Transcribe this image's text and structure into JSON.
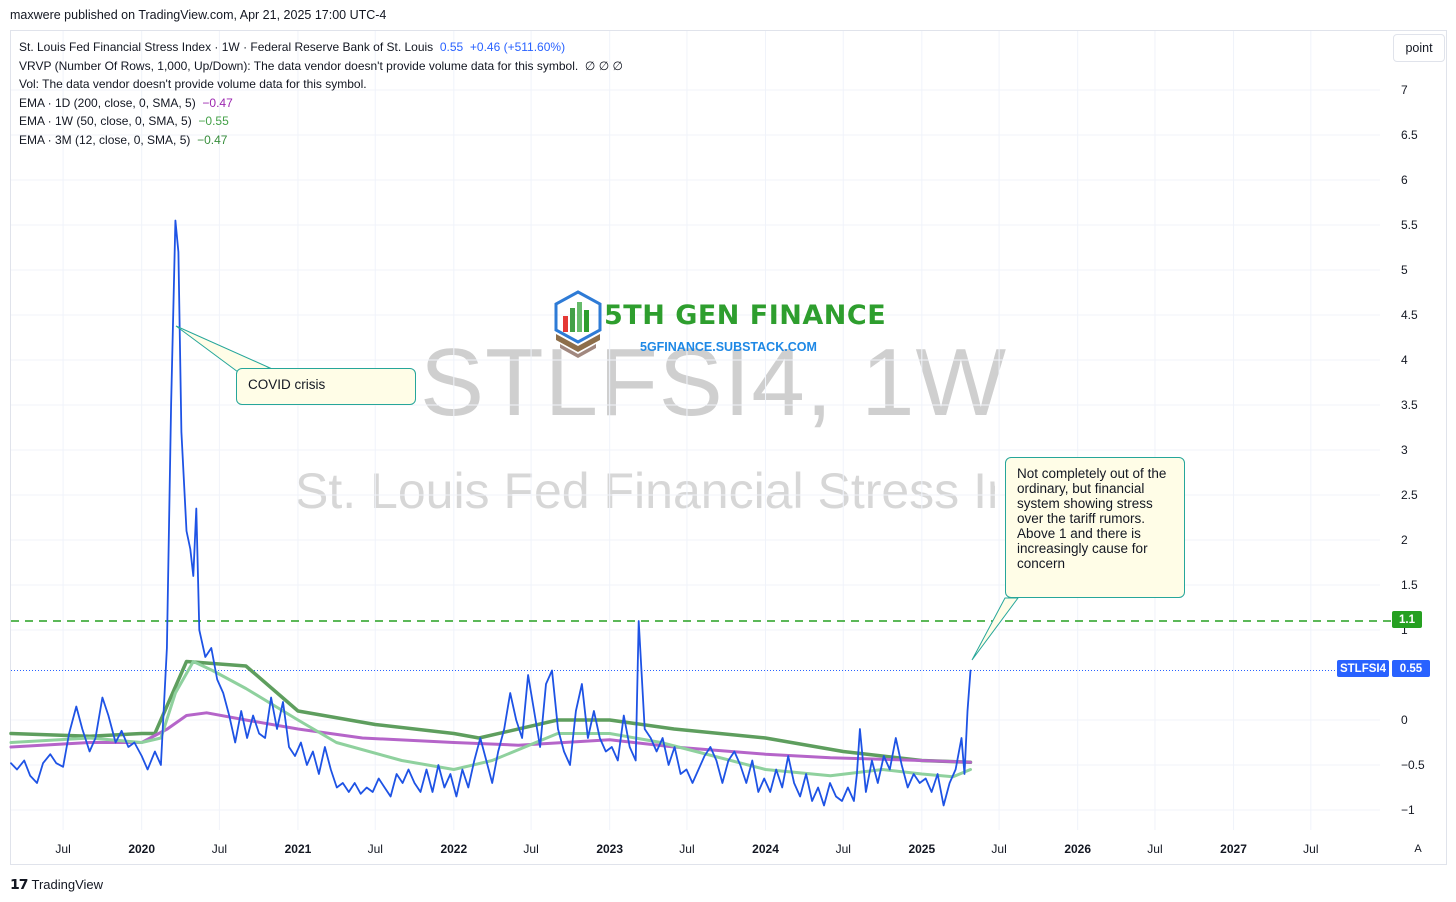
{
  "publisher_line": "maxwere published on TradingView.com, Apr 21, 2025 17:00 UTC-4",
  "legend": {
    "title": "St. Louis Fed Financial Stress Index · 1W · Federal Reserve Bank of St. Louis",
    "last": "0.55",
    "change": "+0.46 (+511.60%)",
    "vrvp": "VRVP (Number Of Rows, 1,000, Up/Down): The data vendor doesn't provide volume data for this symbol.",
    "vrvp_values": "∅  ∅  ∅",
    "vol": "Vol: The data vendor doesn't provide volume data for this symbol.",
    "ema1_label": "EMA · 1D (200, close, 0, SMA, 5)",
    "ema1_value": "−0.47",
    "ema2_label": "EMA · 1W (50, close, 0, SMA, 5)",
    "ema2_value": "−0.55",
    "ema3_label": "EMA · 3M (12, close, 0, SMA, 5)",
    "ema3_value": "−0.47"
  },
  "scale_button": "point",
  "watermark": {
    "symbol": "STLFSI4, 1W",
    "name": "St. Louis Fed Financial Stress In"
  },
  "logo": {
    "title": "5TH GEN FINANCE",
    "subtitle": "5GFINANCE.SUBSTACK.COM"
  },
  "callouts": {
    "covid": "COVID crisis",
    "tariff": "Not completely out of the ordinary, but financial system showing stress over the tariff rumors.  Above 1 and there is increasingly cause for concern"
  },
  "price_tags": {
    "level": "1.1",
    "symbol": "STLFSI4",
    "last": "0.55"
  },
  "footer": {
    "brand": "TradingView",
    "auto_button": "A"
  },
  "colors": {
    "price": "#1e53e5",
    "ema_1d": "#b565c9",
    "ema_1w": "#8fd19e",
    "ema_3m": "#5e9e5e",
    "level": "#26a021"
  },
  "chart_data": {
    "type": "line",
    "y_ticks": [
      "7",
      "6.5",
      "6",
      "5.5",
      "5",
      "4.5",
      "4",
      "3.5",
      "3",
      "2.5",
      "2",
      "1.5",
      "1",
      "0",
      "-0.5",
      "-1"
    ],
    "ylim": [
      -1.15,
      7.35
    ],
    "x_ticks": [
      "Jul",
      "2020",
      "Jul",
      "2021",
      "Jul",
      "2022",
      "Jul",
      "2023",
      "Jul",
      "2024",
      "Jul",
      "2025",
      "Jul",
      "2026",
      "Jul",
      "2027",
      "Jul"
    ],
    "xlim": [
      "2019-03-01",
      "2027-12-10"
    ],
    "horizontal_level": 1.1,
    "last_value": 0.55,
    "series": [
      {
        "name": "STLFSI4",
        "points": [
          [
            "2019-03-01",
            -0.48
          ],
          [
            "2019-03-15",
            -0.55
          ],
          [
            "2019-04-01",
            -0.45
          ],
          [
            "2019-04-15",
            -0.62
          ],
          [
            "2019-05-01",
            -0.7
          ],
          [
            "2019-05-15",
            -0.48
          ],
          [
            "2019-06-01",
            -0.38
          ],
          [
            "2019-06-15",
            -0.48
          ],
          [
            "2019-07-01",
            -0.52
          ],
          [
            "2019-07-15",
            -0.15
          ],
          [
            "2019-08-01",
            0.15
          ],
          [
            "2019-08-15",
            -0.1
          ],
          [
            "2019-09-01",
            -0.35
          ],
          [
            "2019-09-15",
            -0.2
          ],
          [
            "2019-10-01",
            0.25
          ],
          [
            "2019-10-15",
            0.05
          ],
          [
            "2019-11-01",
            -0.25
          ],
          [
            "2019-11-15",
            -0.12
          ],
          [
            "2019-12-01",
            -0.3
          ],
          [
            "2019-12-15",
            -0.25
          ],
          [
            "2020-01-01",
            -0.4
          ],
          [
            "2020-01-15",
            -0.55
          ],
          [
            "2020-02-01",
            -0.35
          ],
          [
            "2020-02-15",
            -0.5
          ],
          [
            "2020-02-29",
            0.8
          ],
          [
            "2020-03-10",
            3.5
          ],
          [
            "2020-03-20",
            5.55
          ],
          [
            "2020-03-27",
            5.2
          ],
          [
            "2020-04-03",
            3.2
          ],
          [
            "2020-04-15",
            2.1
          ],
          [
            "2020-04-24",
            1.9
          ],
          [
            "2020-05-01",
            1.6
          ],
          [
            "2020-05-08",
            2.35
          ],
          [
            "2020-05-15",
            1.0
          ],
          [
            "2020-05-29",
            0.7
          ],
          [
            "2020-06-12",
            0.8
          ],
          [
            "2020-06-26",
            0.45
          ],
          [
            "2020-07-10",
            0.3
          ],
          [
            "2020-07-24",
            0.05
          ],
          [
            "2020-08-07",
            -0.25
          ],
          [
            "2020-08-21",
            0.1
          ],
          [
            "2020-09-04",
            -0.2
          ],
          [
            "2020-09-18",
            0.05
          ],
          [
            "2020-10-02",
            -0.15
          ],
          [
            "2020-10-16",
            -0.2
          ],
          [
            "2020-10-30",
            0.25
          ],
          [
            "2020-11-13",
            -0.1
          ],
          [
            "2020-11-27",
            0.2
          ],
          [
            "2020-12-11",
            -0.3
          ],
          [
            "2020-12-25",
            -0.4
          ],
          [
            "2021-01-08",
            -0.25
          ],
          [
            "2021-01-22",
            -0.5
          ],
          [
            "2021-02-05",
            -0.35
          ],
          [
            "2021-02-19",
            -0.6
          ],
          [
            "2021-03-05",
            -0.3
          ],
          [
            "2021-03-19",
            -0.55
          ],
          [
            "2021-04-02",
            -0.75
          ],
          [
            "2021-04-16",
            -0.7
          ],
          [
            "2021-04-30",
            -0.8
          ],
          [
            "2021-05-14",
            -0.7
          ],
          [
            "2021-05-28",
            -0.82
          ],
          [
            "2021-06-11",
            -0.75
          ],
          [
            "2021-06-25",
            -0.8
          ],
          [
            "2021-07-09",
            -0.65
          ],
          [
            "2021-07-23",
            -0.75
          ],
          [
            "2021-08-06",
            -0.85
          ],
          [
            "2021-08-20",
            -0.6
          ],
          [
            "2021-09-03",
            -0.7
          ],
          [
            "2021-09-17",
            -0.55
          ],
          [
            "2021-10-01",
            -0.7
          ],
          [
            "2021-10-15",
            -0.8
          ],
          [
            "2021-10-29",
            -0.55
          ],
          [
            "2021-11-12",
            -0.8
          ],
          [
            "2021-11-26",
            -0.5
          ],
          [
            "2021-12-10",
            -0.75
          ],
          [
            "2021-12-24",
            -0.6
          ],
          [
            "2022-01-07",
            -0.85
          ],
          [
            "2022-01-21",
            -0.55
          ],
          [
            "2022-02-04",
            -0.75
          ],
          [
            "2022-02-18",
            -0.45
          ],
          [
            "2022-03-04",
            -0.2
          ],
          [
            "2022-03-18",
            -0.45
          ],
          [
            "2022-04-01",
            -0.7
          ],
          [
            "2022-04-15",
            -0.35
          ],
          [
            "2022-04-29",
            -0.1
          ],
          [
            "2022-05-13",
            0.3
          ],
          [
            "2022-05-27",
            0.0
          ],
          [
            "2022-06-10",
            -0.2
          ],
          [
            "2022-06-24",
            0.5
          ],
          [
            "2022-07-08",
            0.1
          ],
          [
            "2022-07-22",
            -0.3
          ],
          [
            "2022-08-05",
            0.4
          ],
          [
            "2022-08-19",
            0.55
          ],
          [
            "2022-09-02",
            -0.1
          ],
          [
            "2022-09-16",
            -0.35
          ],
          [
            "2022-09-30",
            -0.5
          ],
          [
            "2022-10-14",
            0.1
          ],
          [
            "2022-10-28",
            0.4
          ],
          [
            "2022-11-11",
            -0.2
          ],
          [
            "2022-11-25",
            0.1
          ],
          [
            "2022-12-09",
            -0.2
          ],
          [
            "2022-12-23",
            -0.35
          ],
          [
            "2023-01-06",
            -0.3
          ],
          [
            "2023-01-20",
            -0.45
          ],
          [
            "2023-02-03",
            0.05
          ],
          [
            "2023-02-17",
            -0.3
          ],
          [
            "2023-03-03",
            -0.45
          ],
          [
            "2023-03-10",
            1.1
          ],
          [
            "2023-03-24",
            -0.1
          ],
          [
            "2023-04-07",
            -0.2
          ],
          [
            "2023-04-21",
            -0.35
          ],
          [
            "2023-05-05",
            -0.2
          ],
          [
            "2023-05-19",
            -0.5
          ],
          [
            "2023-06-02",
            -0.3
          ],
          [
            "2023-06-16",
            -0.6
          ],
          [
            "2023-06-30",
            -0.55
          ],
          [
            "2023-07-14",
            -0.7
          ],
          [
            "2023-07-28",
            -0.55
          ],
          [
            "2023-08-11",
            -0.4
          ],
          [
            "2023-08-25",
            -0.3
          ],
          [
            "2023-09-08",
            -0.45
          ],
          [
            "2023-09-22",
            -0.7
          ],
          [
            "2023-10-06",
            -0.45
          ],
          [
            "2023-10-20",
            -0.35
          ],
          [
            "2023-11-03",
            -0.5
          ],
          [
            "2023-11-17",
            -0.7
          ],
          [
            "2023-12-01",
            -0.45
          ],
          [
            "2023-12-15",
            -0.8
          ],
          [
            "2023-12-29",
            -0.65
          ],
          [
            "2024-01-12",
            -0.8
          ],
          [
            "2024-01-26",
            -0.55
          ],
          [
            "2024-02-09",
            -0.75
          ],
          [
            "2024-02-23",
            -0.4
          ],
          [
            "2024-03-08",
            -0.7
          ],
          [
            "2024-03-22",
            -0.85
          ],
          [
            "2024-04-05",
            -0.6
          ],
          [
            "2024-04-19",
            -0.9
          ],
          [
            "2024-05-03",
            -0.75
          ],
          [
            "2024-05-17",
            -0.95
          ],
          [
            "2024-05-31",
            -0.7
          ],
          [
            "2024-06-14",
            -0.85
          ],
          [
            "2024-06-28",
            -0.9
          ],
          [
            "2024-07-12",
            -0.75
          ],
          [
            "2024-07-26",
            -0.9
          ],
          [
            "2024-08-02",
            -0.6
          ],
          [
            "2024-08-09",
            -0.1
          ],
          [
            "2024-08-23",
            -0.8
          ],
          [
            "2024-09-06",
            -0.45
          ],
          [
            "2024-09-20",
            -0.7
          ],
          [
            "2024-10-04",
            -0.4
          ],
          [
            "2024-10-18",
            -0.55
          ],
          [
            "2024-11-01",
            -0.2
          ],
          [
            "2024-11-15",
            -0.5
          ],
          [
            "2024-11-29",
            -0.75
          ],
          [
            "2024-12-13",
            -0.6
          ],
          [
            "2024-12-27",
            -0.7
          ],
          [
            "2025-01-10",
            -0.65
          ],
          [
            "2025-01-24",
            -0.8
          ],
          [
            "2025-02-07",
            -0.6
          ],
          [
            "2025-02-21",
            -0.95
          ],
          [
            "2025-03-07",
            -0.7
          ],
          [
            "2025-03-21",
            -0.55
          ],
          [
            "2025-04-04",
            -0.2
          ],
          [
            "2025-04-11",
            -0.6
          ],
          [
            "2025-04-18",
            0.1
          ],
          [
            "2025-04-25",
            0.55
          ]
        ]
      },
      {
        "name": "EMA 1D",
        "points": [
          [
            "2019-03-01",
            -0.3
          ],
          [
            "2019-09-01",
            -0.25
          ],
          [
            "2020-01-01",
            -0.25
          ],
          [
            "2020-03-01",
            -0.1
          ],
          [
            "2020-04-15",
            0.05
          ],
          [
            "2020-06-01",
            0.08
          ],
          [
            "2020-09-01",
            0.0
          ],
          [
            "2021-01-01",
            -0.1
          ],
          [
            "2021-06-01",
            -0.2
          ],
          [
            "2022-01-01",
            -0.25
          ],
          [
            "2022-06-01",
            -0.28
          ],
          [
            "2023-01-01",
            -0.22
          ],
          [
            "2023-06-01",
            -0.3
          ],
          [
            "2024-01-01",
            -0.38
          ],
          [
            "2024-06-01",
            -0.42
          ],
          [
            "2025-01-01",
            -0.45
          ],
          [
            "2025-04-25",
            -0.47
          ]
        ]
      },
      {
        "name": "EMA 1W",
        "points": [
          [
            "2019-03-01",
            -0.25
          ],
          [
            "2019-09-01",
            -0.2
          ],
          [
            "2020-01-01",
            -0.25
          ],
          [
            "2020-02-15",
            -0.2
          ],
          [
            "2020-03-20",
            0.3
          ],
          [
            "2020-05-01",
            0.65
          ],
          [
            "2020-06-15",
            0.55
          ],
          [
            "2020-09-01",
            0.35
          ],
          [
            "2021-01-01",
            0.0
          ],
          [
            "2021-04-01",
            -0.25
          ],
          [
            "2021-09-01",
            -0.45
          ],
          [
            "2022-01-01",
            -0.55
          ],
          [
            "2022-04-01",
            -0.45
          ],
          [
            "2022-09-01",
            -0.15
          ],
          [
            "2023-01-01",
            -0.15
          ],
          [
            "2023-05-01",
            -0.25
          ],
          [
            "2023-09-01",
            -0.4
          ],
          [
            "2024-01-01",
            -0.55
          ],
          [
            "2024-06-01",
            -0.62
          ],
          [
            "2024-10-01",
            -0.55
          ],
          [
            "2025-01-01",
            -0.6
          ],
          [
            "2025-03-15",
            -0.63
          ],
          [
            "2025-04-25",
            -0.55
          ]
        ]
      },
      {
        "name": "EMA 3M",
        "points": [
          [
            "2019-03-01",
            -0.15
          ],
          [
            "2019-09-01",
            -0.18
          ],
          [
            "2020-01-01",
            -0.15
          ],
          [
            "2020-02-01",
            -0.15
          ],
          [
            "2020-04-15",
            0.65
          ],
          [
            "2020-09-01",
            0.6
          ],
          [
            "2021-01-01",
            0.1
          ],
          [
            "2021-07-01",
            -0.05
          ],
          [
            "2022-01-01",
            -0.15
          ],
          [
            "2022-03-01",
            -0.2
          ],
          [
            "2022-09-01",
            0.0
          ],
          [
            "2023-01-01",
            0.0
          ],
          [
            "2023-06-01",
            -0.1
          ],
          [
            "2024-01-01",
            -0.2
          ],
          [
            "2024-07-01",
            -0.35
          ],
          [
            "2025-01-01",
            -0.45
          ],
          [
            "2025-04-25",
            -0.47
          ]
        ]
      }
    ]
  }
}
